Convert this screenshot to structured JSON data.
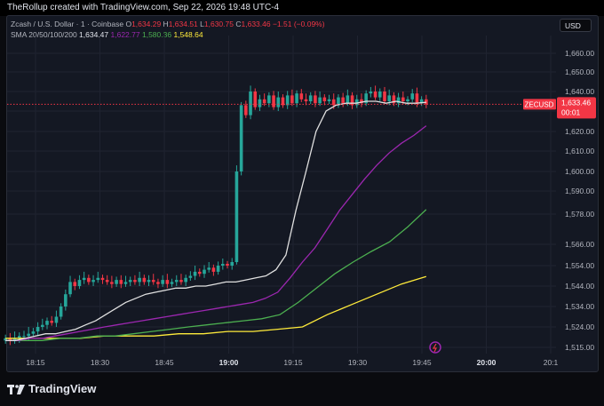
{
  "header": {
    "credit": "TheRollup created with TradingView.com, Sep 22, 2026 19:48 UTC-4"
  },
  "legend": {
    "symbol_line": "Zcash / U.S. Dollar · 1 · Coinbase",
    "o_label": "O",
    "o_value": "1,634.29",
    "h_label": "H",
    "h_value": "1,634.51",
    "l_label": "L",
    "l_value": "1,630.75",
    "c_label": "C",
    "c_value": "1,633.46",
    "change": "−1.51 (−0.09%)",
    "sma_label": "SMA 20/50/100/200",
    "sma20": "1,634.47",
    "sma50": "1,622.77",
    "sma100": "1,580.36",
    "sma200": "1,548.64"
  },
  "currency_button": "USD",
  "price_tag": {
    "symbol": "ZECUSD",
    "price": "1,633.46",
    "countdown": "00:01"
  },
  "footer": {
    "brand": "TradingView"
  },
  "colors": {
    "up": "#26a69a",
    "down": "#f23645",
    "sma20": "#e0e0e0",
    "sma50": "#9c27b0",
    "sma100": "#4caf50",
    "sma200": "#ffeb3b"
  },
  "chart_data": {
    "type": "candlestick",
    "symbol": "ZECUSD",
    "interval": "1",
    "y_ticks": [
      1515,
      1524,
      1534,
      1544,
      1554,
      1566,
      1578,
      1590,
      1600,
      1610,
      1620,
      1630,
      1640,
      1650,
      1660
    ],
    "y_tick_labels": [
      "1,515.00",
      "1,524.00",
      "1,534.00",
      "1,544.00",
      "1,554.00",
      "1,566.00",
      "1,578.00",
      "1,590.00",
      "1,600.00",
      "1,610.00",
      "1,620.00",
      "1,630.00",
      "1,640.00",
      "1,650.00",
      "1,660.00"
    ],
    "x_ticks": [
      "18:15",
      "18:30",
      "18:45",
      "19:00",
      "19:15",
      "19:30",
      "19:45",
      "20:00",
      "20:1"
    ],
    "x_tick_minutes": [
      15,
      30,
      45,
      60,
      75,
      90,
      105,
      120,
      135
    ],
    "last_price": 1633.46,
    "candles_close": [
      1519,
      1518,
      1519,
      1520,
      1520,
      1521,
      1522,
      1524,
      1525,
      1527,
      1526,
      1529,
      1534,
      1540,
      1546,
      1544,
      1547,
      1548,
      1546,
      1547,
      1548,
      1547,
      1546,
      1545,
      1547,
      1545,
      1546,
      1547,
      1546,
      1548,
      1546,
      1547,
      1546,
      1545,
      1547,
      1545,
      1546,
      1547,
      1546,
      1548,
      1549,
      1551,
      1550,
      1552,
      1553,
      1551,
      1554,
      1555,
      1554,
      1556,
      1600,
      1633,
      1628,
      1640,
      1632,
      1636,
      1634,
      1638,
      1632,
      1637,
      1633,
      1638,
      1634,
      1639,
      1636,
      1635,
      1638,
      1634,
      1637,
      1635,
      1636,
      1633,
      1637,
      1634,
      1638,
      1633,
      1636,
      1634,
      1639,
      1640,
      1637,
      1640,
      1635,
      1638,
      1634,
      1637,
      1635,
      1636,
      1639,
      1634,
      1636,
      1633.46
    ],
    "sma20": [
      1518,
      1518,
      1519,
      1520,
      1521,
      1521,
      1522,
      1523,
      1525,
      1527,
      1530,
      1533,
      1536,
      1538,
      1540,
      1541,
      1542,
      1543,
      1543,
      1544,
      1544,
      1545,
      1546,
      1546,
      1547,
      1548,
      1549,
      1552,
      1560,
      1580,
      1600,
      1620,
      1630,
      1633,
      1634,
      1634,
      1635,
      1635,
      1634,
      1635,
      1634,
      1634,
      1634.47
    ],
    "sma50": [
      1518,
      1518,
      1519,
      1519,
      1520,
      1521,
      1522,
      1523,
      1524,
      1525,
      1526,
      1527,
      1528,
      1529,
      1530,
      1531,
      1532,
      1533,
      1534,
      1535,
      1536,
      1538,
      1541,
      1548,
      1556,
      1564,
      1572,
      1580,
      1588,
      1596,
      1603,
      1609,
      1614,
      1618,
      1622.77
    ],
    "sma100": [
      1518,
      1518,
      1518,
      1519,
      1519,
      1520,
      1520,
      1521,
      1522,
      1523,
      1524,
      1525,
      1526,
      1527,
      1528,
      1530,
      1536,
      1543,
      1550,
      1556,
      1562,
      1567,
      1573,
      1580.36
    ],
    "sma200": [
      1519,
      1519,
      1519,
      1519,
      1520,
      1520,
      1520,
      1521,
      1521,
      1522,
      1522,
      1523,
      1524,
      1530,
      1535,
      1540,
      1545,
      1548.64
    ]
  }
}
